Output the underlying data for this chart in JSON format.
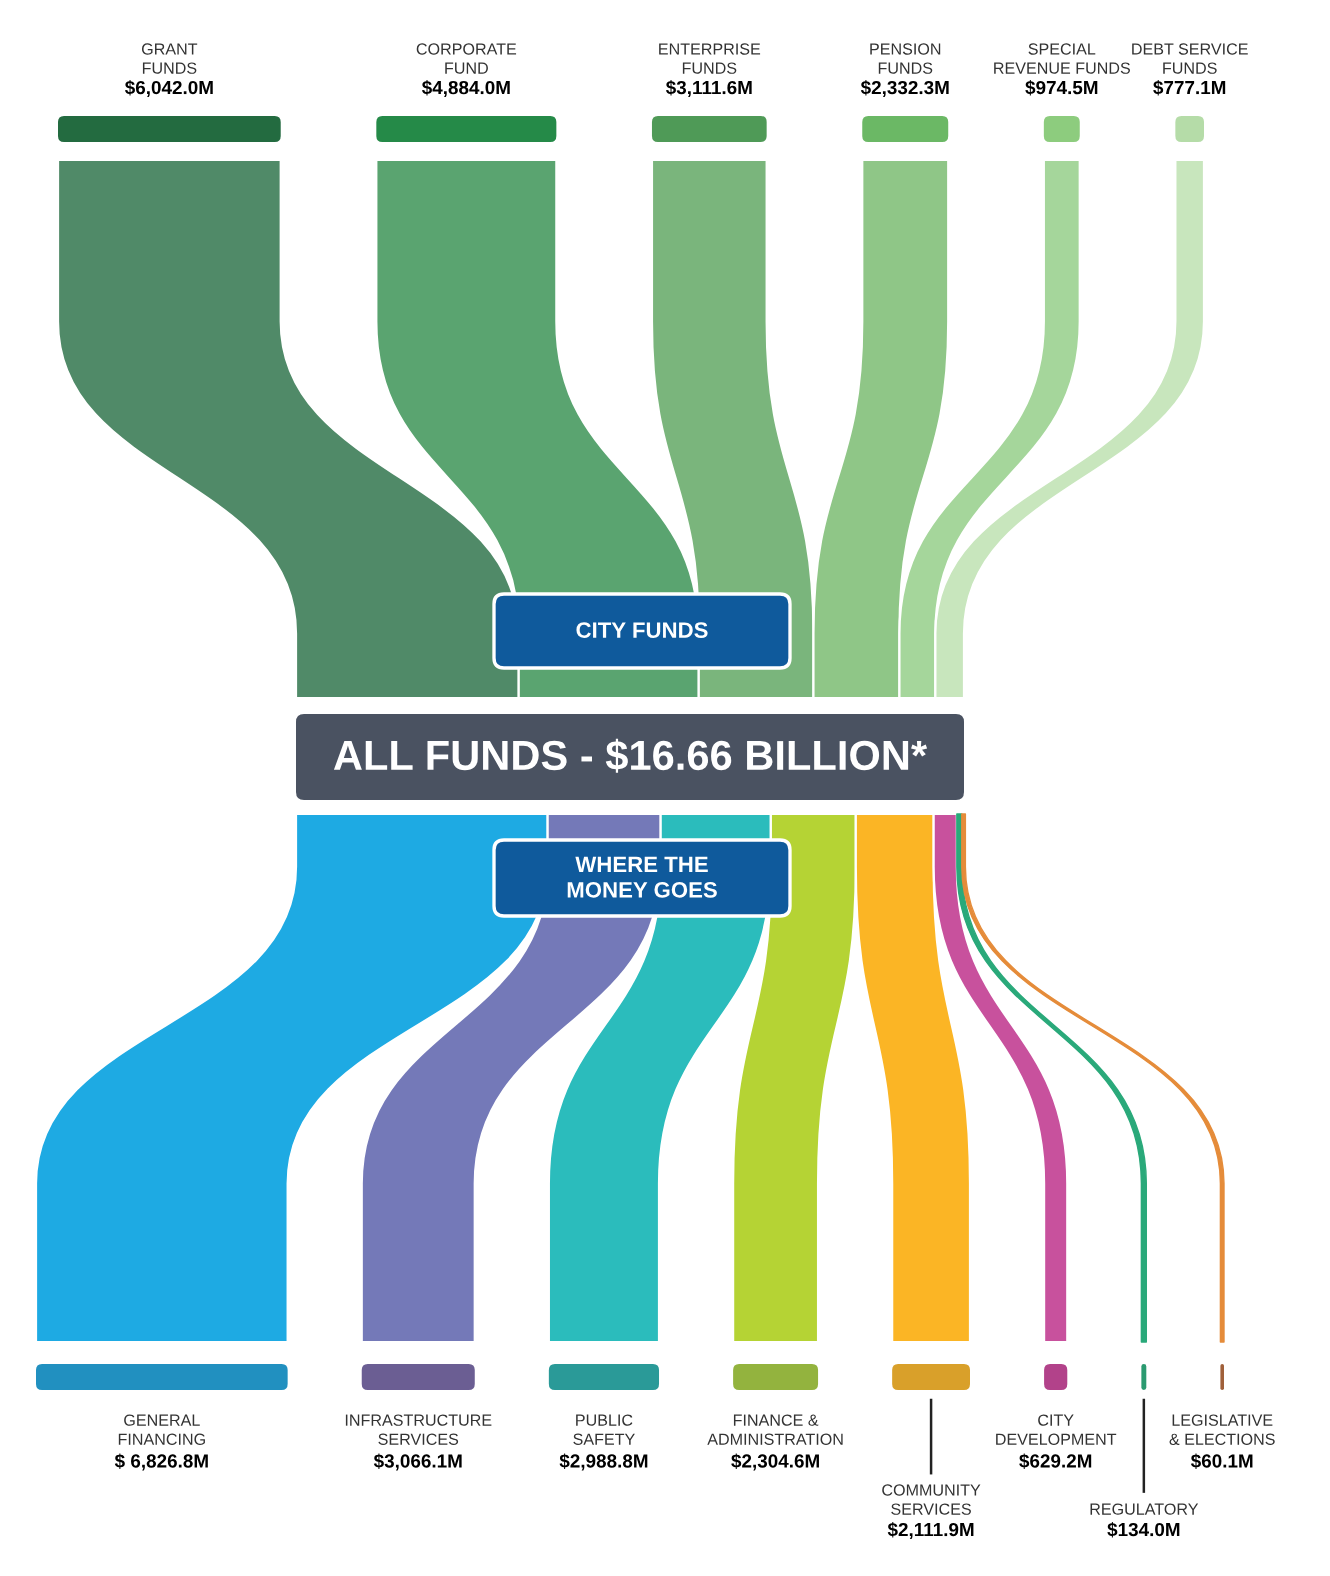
{
  "chart_data": {
    "type": "other",
    "title": "ALL FUNDS - $16.66 BILLION*",
    "categories": [
      "GRANT\nFUNDS",
      "CORPORATE\nFUND",
      "ENTERPRISE\nFUNDS",
      "PENSION\nFUNDS",
      "SPECIAL\nREVENUE FUNDS",
      "DEBT SERVICE\nFUNDS",
      "GENERAL\nFINANCING",
      "INFRASTRUCTURE\nSERVICES",
      "PUBLIC\nSAFETY",
      "FINANCE &\nADMINISTRATION",
      "COMMUNITY\nSERVICES",
      "CITY\nDEVELOPMENT",
      "REGULATORY",
      "LEGISLATIVE\n& ELECTIONS"
    ],
    "colors": [
      "#236b40",
      "#258a48",
      "#4f9a57",
      "#6bb865",
      "#8dcc7e",
      "#b5dca8",
      "#2190c0",
      "#6b5e93",
      "#2a9a98",
      "#93b33e",
      "#d9a02a",
      "#b2428a",
      "#2a9a70",
      "#a0603a"
    ],
    "series": [
      {
        "values": [
          6042.0,
          4884.0,
          3111.6,
          2332.3,
          974.5,
          777.1,
          null,
          null,
          null,
          null,
          null,
          null,
          null,
          null
        ],
        "value_labels": [
          "$6,042.0M",
          "$4,884.0M",
          "$3,111.6M",
          "$2,332.3M",
          "$974.5M",
          "$777.1M",
          null,
          null,
          null,
          null,
          null,
          null,
          null,
          null
        ],
        "colors": [
          "#508a68",
          "#5aa470",
          "#7ab57c",
          "#8fc687",
          "#a5d69b",
          "#c8e6bd",
          null,
          null,
          null,
          null,
          null,
          null,
          null,
          null
        ]
      },
      {
        "values": [
          null,
          null,
          null,
          null,
          null,
          null,
          6826.8,
          3066.1,
          2988.8,
          2304.6,
          2111.9,
          629.2,
          134.0,
          60.1
        ],
        "value_labels": [
          null,
          null,
          null,
          null,
          null,
          null,
          "$ 6,826.8M",
          "$3,066.1M",
          "$2,988.8M",
          "$2,304.6M",
          "$2,111.9M",
          "$629.2M",
          "$134.0M",
          "$60.1M"
        ],
        "colors": [
          null,
          null,
          null,
          null,
          null,
          null,
          "#1eaae3",
          "#7479b8",
          "#2bbcbc",
          "#b5d334",
          "#fbb525",
          "#c8519d",
          "#2aa97a",
          "#e58c3a"
        ]
      }
    ],
    "annotations": [
      "CITY FUNDS",
      "WHERE THE\nMONEY GOES"
    ]
  }
}
